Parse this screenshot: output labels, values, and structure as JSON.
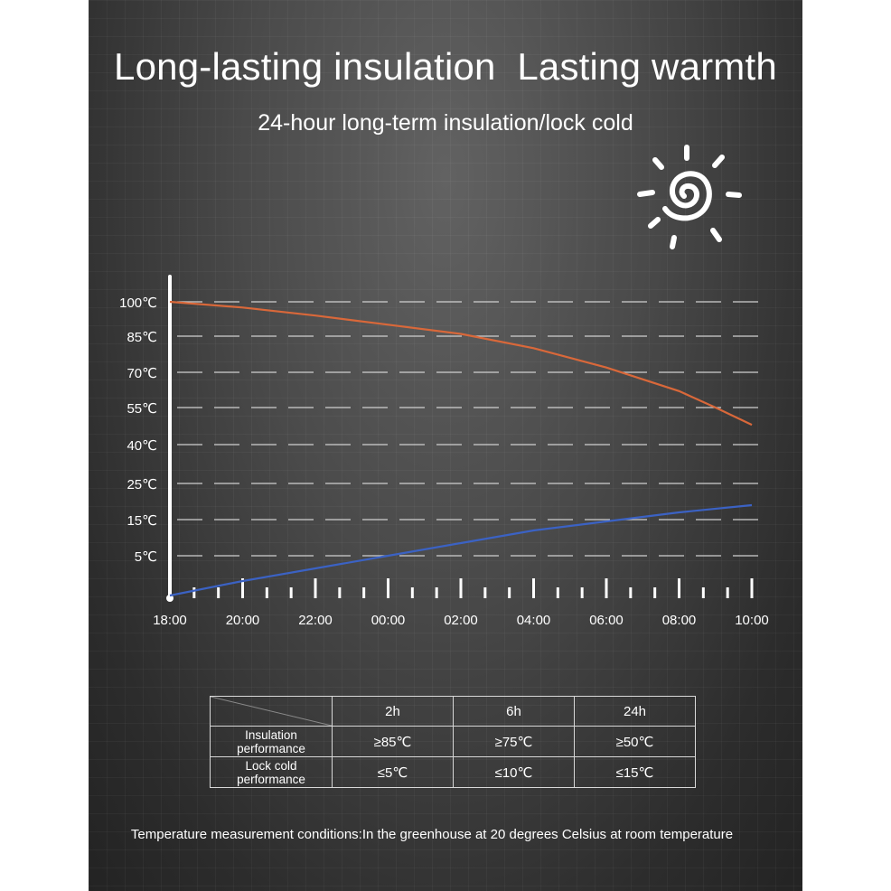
{
  "title": "Long-lasting insulation  Lasting warmth",
  "subtitle": "24-hour long-term insulation/lock cold",
  "icon": "sun-icon",
  "colors": {
    "hot_line": "#d9683a",
    "cold_line": "#3b62c4",
    "axis": "#ffffff",
    "gridline": "#d0d0d0"
  },
  "chart_data": {
    "type": "line",
    "title": "",
    "xlabel": "",
    "ylabel": "",
    "x_tick_labels": [
      "18:00",
      "20:00",
      "22:00",
      "00:00",
      "02:00",
      "04:00",
      "06:00",
      "08:00",
      "10:00"
    ],
    "y_tick_labels": [
      "100℃",
      "85℃",
      "70℃",
      "55℃",
      "40℃",
      "25℃",
      "15℃",
      "5℃"
    ],
    "y_tick_values": [
      100,
      85,
      70,
      55,
      40,
      25,
      15,
      5
    ],
    "x_hours": [
      0,
      2,
      4,
      6,
      8,
      10,
      12,
      14,
      16
    ],
    "grid": true,
    "series": [
      {
        "name": "Insulation",
        "color": "#d9683a",
        "x": [
          0,
          2,
          4,
          6,
          8,
          10,
          12,
          14,
          15,
          16
        ],
        "y": [
          100,
          97.5,
          94,
          90,
          86,
          80,
          72,
          62,
          55,
          48
        ]
      },
      {
        "name": "Lock cold",
        "color": "#3b62c4",
        "x": [
          0,
          2,
          4,
          6,
          8,
          10,
          12,
          14,
          16
        ],
        "y": [
          -6,
          -2,
          1.5,
          5,
          8.5,
          12,
          14.5,
          17,
          19
        ]
      }
    ]
  },
  "table": {
    "headers": [
      "2h",
      "6h",
      "24h"
    ],
    "rows": [
      {
        "label_line1": "Insulation",
        "label_line2": "performance",
        "values": [
          "≥85℃",
          "≥75℃",
          "≥50℃"
        ]
      },
      {
        "label_line1": "Lock cold",
        "label_line2": "performance",
        "values": [
          "≤5℃",
          "≤10℃",
          "≤15℃"
        ]
      }
    ]
  },
  "footnote": "Temperature measurement conditions:In the greenhouse at 20 degrees Celsius at room temperature"
}
